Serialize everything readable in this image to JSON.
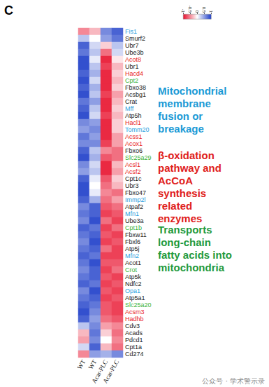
{
  "chart_data": {
    "type": "heatmap",
    "panel_label": "C",
    "columns": [
      "WT",
      "WT",
      "Acar-PLC",
      "Acar-PLC"
    ],
    "rows": [
      {
        "label": "Fis1",
        "color": "#2a9fe0",
        "values": [
          -0.5,
          -0.3,
          0.6,
          0.8
        ]
      },
      {
        "label": "Smurf2",
        "color": "#222222",
        "values": [
          0.3,
          0.0,
          0.5,
          0.7
        ]
      },
      {
        "label": "Ubr7",
        "color": "#222222",
        "values": [
          0.8,
          0.2,
          -0.2,
          0.3
        ]
      },
      {
        "label": "Ube3b",
        "color": "#222222",
        "values": [
          0.7,
          0.3,
          -0.6,
          0.2
        ]
      },
      {
        "label": "Acot8",
        "color": "#e8231f",
        "values": [
          0.9,
          0.1,
          -0.9,
          -0.1
        ]
      },
      {
        "label": "Ubr1",
        "color": "#222222",
        "values": [
          0.9,
          0.3,
          -0.8,
          -0.3
        ]
      },
      {
        "label": "Hacd4",
        "color": "#e8231f",
        "values": [
          0.8,
          0.4,
          -0.9,
          -0.2
        ]
      },
      {
        "label": "Cpt2",
        "color": "#3cb43c",
        "values": [
          0.9,
          0.2,
          -0.9,
          -0.3
        ]
      },
      {
        "label": "Fbxo38",
        "color": "#222222",
        "values": [
          0.8,
          0.4,
          -0.9,
          -0.2
        ]
      },
      {
        "label": "Acsbg1",
        "color": "#222222",
        "values": [
          0.9,
          0.3,
          -0.8,
          -0.4
        ]
      },
      {
        "label": "Crat",
        "color": "#222222",
        "values": [
          0.7,
          0.5,
          -0.9,
          -0.3
        ]
      },
      {
        "label": "Mff",
        "color": "#2a9fe0",
        "values": [
          0.8,
          0.3,
          -0.9,
          -0.2
        ]
      },
      {
        "label": "Atp5h",
        "color": "#222222",
        "values": [
          0.9,
          0.2,
          -0.8,
          -0.3
        ]
      },
      {
        "label": "Hacl1",
        "color": "#e8231f",
        "values": [
          0.6,
          0.5,
          -0.9,
          -0.2
        ]
      },
      {
        "label": "Tomm20",
        "color": "#2a9fe0",
        "values": [
          0.5,
          0.6,
          -0.9,
          -0.2
        ]
      },
      {
        "label": "Acss1",
        "color": "#e8231f",
        "values": [
          0.7,
          0.5,
          -0.9,
          -0.4
        ]
      },
      {
        "label": "Acox1",
        "color": "#e8231f",
        "values": [
          0.6,
          0.6,
          -0.8,
          -0.4
        ]
      },
      {
        "label": "Fbxo6",
        "color": "#222222",
        "values": [
          0.8,
          0.3,
          -0.5,
          -0.6
        ]
      },
      {
        "label": "Slc25a29",
        "color": "#3cb43c",
        "values": [
          0.9,
          0.4,
          -0.7,
          -0.6
        ]
      },
      {
        "label": "Acsl1",
        "color": "#e8231f",
        "values": [
          0.6,
          0.2,
          -0.9,
          -0.3
        ]
      },
      {
        "label": "Acsf2",
        "color": "#e8231f",
        "values": [
          0.5,
          0.3,
          -0.9,
          -0.4
        ]
      },
      {
        "label": "Cpt1c",
        "color": "#222222",
        "values": [
          0.8,
          0.1,
          -0.7,
          -0.2
        ]
      },
      {
        "label": "Ubr3",
        "color": "#222222",
        "values": [
          0.9,
          0.0,
          -0.6,
          -0.3
        ]
      },
      {
        "label": "Fbxo47",
        "color": "#222222",
        "values": [
          0.9,
          0.1,
          -0.5,
          -0.6
        ]
      },
      {
        "label": "Immp2l",
        "color": "#2a9fe0",
        "values": [
          0.8,
          0.4,
          -0.6,
          -0.4
        ]
      },
      {
        "label": "Atpaf2",
        "color": "#222222",
        "values": [
          0.6,
          0.8,
          -0.7,
          -0.6
        ]
      },
      {
        "label": "Mfn1",
        "color": "#2a9fe0",
        "values": [
          0.7,
          0.8,
          -0.8,
          -0.7
        ]
      },
      {
        "label": "Ube3a",
        "color": "#222222",
        "values": [
          0.6,
          0.9,
          -0.6,
          -0.8
        ]
      },
      {
        "label": "Cpt1b",
        "color": "#3cb43c",
        "values": [
          0.8,
          0.7,
          -0.8,
          -0.6
        ]
      },
      {
        "label": "Fbxw11",
        "color": "#222222",
        "values": [
          0.7,
          0.8,
          -0.7,
          -0.8
        ]
      },
      {
        "label": "Fbxl6",
        "color": "#222222",
        "values": [
          0.6,
          0.9,
          -0.8,
          -0.7
        ]
      },
      {
        "label": "Atp5j",
        "color": "#222222",
        "values": [
          0.7,
          0.8,
          -0.6,
          -0.8
        ]
      },
      {
        "label": "Mfn2",
        "color": "#2a9fe0",
        "values": [
          0.8,
          0.7,
          -0.8,
          -0.8
        ]
      },
      {
        "label": "Acot1",
        "color": "#222222",
        "values": [
          0.7,
          0.9,
          -0.7,
          -0.7
        ]
      },
      {
        "label": "Crot",
        "color": "#3cb43c",
        "values": [
          0.6,
          0.8,
          -0.8,
          -0.6
        ]
      },
      {
        "label": "Atp5k",
        "color": "#222222",
        "values": [
          0.7,
          0.8,
          -0.7,
          -0.8
        ]
      },
      {
        "label": "Ndfc2",
        "color": "#222222",
        "values": [
          0.8,
          0.7,
          -0.8,
          -0.7
        ]
      },
      {
        "label": "Opa1",
        "color": "#2a9fe0",
        "values": [
          0.6,
          0.9,
          -0.7,
          -0.8
        ]
      },
      {
        "label": "Atp5a1",
        "color": "#222222",
        "values": [
          0.7,
          0.8,
          -0.8,
          -0.7
        ]
      },
      {
        "label": "Slc25a20",
        "color": "#3cb43c",
        "values": [
          0.8,
          0.7,
          -0.7,
          -0.8
        ]
      },
      {
        "label": "Acsm3",
        "color": "#e8231f",
        "values": [
          0.9,
          0.6,
          -0.7,
          -0.8
        ]
      },
      {
        "label": "Hadhb",
        "color": "#e8231f",
        "values": [
          0.8,
          0.5,
          -0.6,
          -0.7
        ]
      },
      {
        "label": "Cdv3",
        "color": "#222222",
        "values": [
          0.3,
          0.6,
          -0.4,
          -0.5
        ]
      },
      {
        "label": "Acads",
        "color": "#222222",
        "values": [
          -0.3,
          0.7,
          -0.2,
          -0.6
        ]
      },
      {
        "label": "Pdcd1",
        "color": "#222222",
        "values": [
          -0.4,
          0.6,
          0.0,
          -0.5
        ]
      },
      {
        "label": "Cpt1a",
        "color": "#222222",
        "values": [
          0.2,
          0.8,
          -0.3,
          -0.6
        ]
      },
      {
        "label": "Cd274",
        "color": "#222222",
        "values": [
          -0.5,
          0.5,
          0.4,
          0.6
        ]
      }
    ],
    "colorbar": {
      "range": [
        -1,
        1
      ],
      "ticks": [
        -1,
        -0.5,
        0,
        0.5,
        1
      ],
      "colors": [
        "#e8112d",
        "#ffffff",
        "#1c3cc8"
      ]
    },
    "annotations": [
      {
        "lines": [
          "Mitochondrial",
          "membrane",
          "fusion or",
          "breakage"
        ],
        "color": "#1a9ad6"
      },
      {
        "lines": [
          "β-oxidation",
          "pathway and",
          "AcCoA",
          "synthesis",
          "related",
          "enzymes"
        ],
        "color": "#e0201b"
      },
      {
        "lines": [
          "Transports",
          "long-chain",
          "fatty acids into",
          "mitochondria"
        ],
        "color": "#1f9a3c"
      }
    ],
    "watermark": "公众号 · 学术警示录"
  }
}
